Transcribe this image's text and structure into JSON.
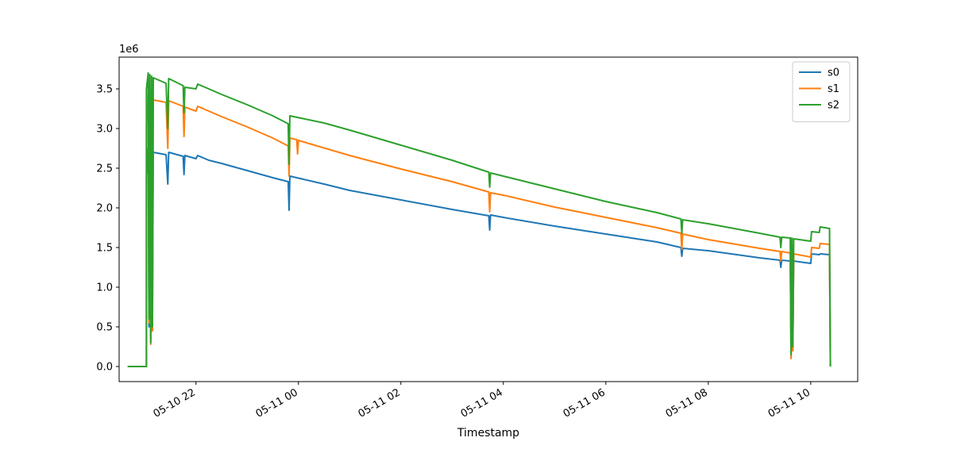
{
  "chart_data": {
    "type": "line",
    "title": "",
    "xlabel": "Timestamp",
    "ylabel": "",
    "y_scale_label": "1e6",
    "grid": false,
    "legend_position": "top-right",
    "xlim": [
      "2024-05-10 20:30",
      "2024-05-11 10:55"
    ],
    "ylim": [
      -0.19,
      3.9
    ],
    "x_ticks": [
      {
        "t": "2024-05-10 22:00",
        "label": "05-10 22"
      },
      {
        "t": "2024-05-11 00:00",
        "label": "05-11 00"
      },
      {
        "t": "2024-05-11 02:00",
        "label": "05-11 02"
      },
      {
        "t": "2024-05-11 04:00",
        "label": "05-11 04"
      },
      {
        "t": "2024-05-11 06:00",
        "label": "05-11 06"
      },
      {
        "t": "2024-05-11 08:00",
        "label": "05-11 08"
      },
      {
        "t": "2024-05-11 10:00",
        "label": "05-11 10"
      }
    ],
    "y_ticks": [
      {
        "v": 0.0,
        "label": "0.0"
      },
      {
        "v": 0.5,
        "label": "0.5"
      },
      {
        "v": 1.0,
        "label": "1.0"
      },
      {
        "v": 1.5,
        "label": "1.5"
      },
      {
        "v": 2.0,
        "label": "2.0"
      },
      {
        "v": 2.5,
        "label": "2.5"
      },
      {
        "v": 3.0,
        "label": "3.0"
      },
      {
        "v": 3.5,
        "label": "3.5"
      }
    ],
    "series": [
      {
        "name": "s0",
        "color": "#1f77b4",
        "points": [
          [
            "2024-05-10 20:40",
            0.0
          ],
          [
            "2024-05-10 21:02",
            0.0
          ],
          [
            "2024-05-10 21:02",
            2.4
          ],
          [
            "2024-05-10 21:04",
            2.75
          ],
          [
            "2024-05-10 21:05",
            0.5
          ],
          [
            "2024-05-10 21:06",
            2.74
          ],
          [
            "2024-05-10 21:07",
            0.35
          ],
          [
            "2024-05-10 21:08",
            2.72
          ],
          [
            "2024-05-10 21:09",
            0.45
          ],
          [
            "2024-05-10 21:10",
            2.7
          ],
          [
            "2024-05-10 21:25",
            2.67
          ],
          [
            "2024-05-10 21:27",
            2.3
          ],
          [
            "2024-05-10 21:28",
            2.7
          ],
          [
            "2024-05-10 21:45",
            2.65
          ],
          [
            "2024-05-10 21:46",
            2.42
          ],
          [
            "2024-05-10 21:47",
            2.66
          ],
          [
            "2024-05-10 22:00",
            2.62
          ],
          [
            "2024-05-10 22:02",
            2.66
          ],
          [
            "2024-05-10 22:15",
            2.6
          ],
          [
            "2024-05-10 22:30",
            2.56
          ],
          [
            "2024-05-10 23:00",
            2.47
          ],
          [
            "2024-05-10 23:30",
            2.38
          ],
          [
            "2024-05-10 23:48",
            2.33
          ],
          [
            "2024-05-10 23:49",
            1.97
          ],
          [
            "2024-05-10 23:50",
            2.4
          ],
          [
            "2024-05-11 00:30",
            2.3
          ],
          [
            "2024-05-11 01:00",
            2.22
          ],
          [
            "2024-05-11 02:00",
            2.1
          ],
          [
            "2024-05-11 03:00",
            1.98
          ],
          [
            "2024-05-11 03:43",
            1.9
          ],
          [
            "2024-05-11 03:44",
            1.72
          ],
          [
            "2024-05-11 03:45",
            1.91
          ],
          [
            "2024-05-11 04:00",
            1.88
          ],
          [
            "2024-05-11 05:00",
            1.77
          ],
          [
            "2024-05-11 06:00",
            1.67
          ],
          [
            "2024-05-11 07:00",
            1.57
          ],
          [
            "2024-05-11 07:28",
            1.5
          ],
          [
            "2024-05-11 07:29",
            1.39
          ],
          [
            "2024-05-11 07:30",
            1.49
          ],
          [
            "2024-05-11 08:00",
            1.46
          ],
          [
            "2024-05-11 09:00",
            1.37
          ],
          [
            "2024-05-11 09:24",
            1.34
          ],
          [
            "2024-05-11 09:25",
            1.25
          ],
          [
            "2024-05-11 09:26",
            1.34
          ],
          [
            "2024-05-11 09:36",
            1.33
          ],
          [
            "2024-05-11 09:37",
            0.12
          ],
          [
            "2024-05-11 09:38",
            1.33
          ],
          [
            "2024-05-11 09:39",
            0.2
          ],
          [
            "2024-05-11 09:40",
            1.33
          ],
          [
            "2024-05-11 10:00",
            1.3
          ],
          [
            "2024-05-11 10:01",
            1.42
          ],
          [
            "2024-05-11 10:10",
            1.41
          ],
          [
            "2024-05-11 10:11",
            1.42
          ],
          [
            "2024-05-11 10:22",
            1.41
          ],
          [
            "2024-05-11 10:23",
            0.0
          ]
        ]
      },
      {
        "name": "s1",
        "color": "#ff7f0e",
        "points": [
          [
            "2024-05-10 20:40",
            0.0
          ],
          [
            "2024-05-10 21:02",
            0.0
          ],
          [
            "2024-05-10 21:02",
            3.05
          ],
          [
            "2024-05-10 21:04",
            3.42
          ],
          [
            "2024-05-10 21:05",
            0.55
          ],
          [
            "2024-05-10 21:06",
            3.4
          ],
          [
            "2024-05-10 21:07",
            0.28
          ],
          [
            "2024-05-10 21:08",
            3.38
          ],
          [
            "2024-05-10 21:09",
            0.45
          ],
          [
            "2024-05-10 21:10",
            3.36
          ],
          [
            "2024-05-10 21:25",
            3.33
          ],
          [
            "2024-05-10 21:27",
            2.75
          ],
          [
            "2024-05-10 21:28",
            3.35
          ],
          [
            "2024-05-10 21:45",
            3.28
          ],
          [
            "2024-05-10 21:46",
            2.9
          ],
          [
            "2024-05-10 21:47",
            3.27
          ],
          [
            "2024-05-10 22:00",
            3.22
          ],
          [
            "2024-05-10 22:02",
            3.28
          ],
          [
            "2024-05-10 22:30",
            3.15
          ],
          [
            "2024-05-10 23:00",
            3.02
          ],
          [
            "2024-05-10 23:30",
            2.88
          ],
          [
            "2024-05-10 23:48",
            2.78
          ],
          [
            "2024-05-10 23:49",
            2.4
          ],
          [
            "2024-05-10 23:50",
            2.88
          ],
          [
            "2024-05-10 23:58",
            2.86
          ],
          [
            "2024-05-10 23:59",
            2.68
          ],
          [
            "2024-05-11 00:00",
            2.85
          ],
          [
            "2024-05-11 01:00",
            2.66
          ],
          [
            "2024-05-11 02:00",
            2.49
          ],
          [
            "2024-05-11 03:00",
            2.33
          ],
          [
            "2024-05-11 03:43",
            2.2
          ],
          [
            "2024-05-11 03:44",
            1.95
          ],
          [
            "2024-05-11 03:45",
            2.19
          ],
          [
            "2024-05-11 04:00",
            2.16
          ],
          [
            "2024-05-11 05:00",
            2.01
          ],
          [
            "2024-05-11 06:00",
            1.88
          ],
          [
            "2024-05-11 07:00",
            1.75
          ],
          [
            "2024-05-11 07:28",
            1.68
          ],
          [
            "2024-05-11 07:29",
            1.48
          ],
          [
            "2024-05-11 07:30",
            1.67
          ],
          [
            "2024-05-11 08:00",
            1.6
          ],
          [
            "2024-05-11 09:00",
            1.49
          ],
          [
            "2024-05-11 09:24",
            1.45
          ],
          [
            "2024-05-11 09:25",
            1.33
          ],
          [
            "2024-05-11 09:26",
            1.45
          ],
          [
            "2024-05-11 09:36",
            1.43
          ],
          [
            "2024-05-11 09:37",
            0.1
          ],
          [
            "2024-05-11 09:38",
            1.43
          ],
          [
            "2024-05-11 09:39",
            0.2
          ],
          [
            "2024-05-11 09:40",
            1.42
          ],
          [
            "2024-05-11 10:00",
            1.38
          ],
          [
            "2024-05-11 10:01",
            1.5
          ],
          [
            "2024-05-11 10:10",
            1.49
          ],
          [
            "2024-05-11 10:11",
            1.55
          ],
          [
            "2024-05-11 10:22",
            1.54
          ],
          [
            "2024-05-11 10:23",
            0.0
          ]
        ]
      },
      {
        "name": "s2",
        "color": "#2ca02c",
        "points": [
          [
            "2024-05-10 20:40",
            0.0
          ],
          [
            "2024-05-10 21:02",
            0.0
          ],
          [
            "2024-05-10 21:02",
            3.5
          ],
          [
            "2024-05-10 21:04",
            3.7
          ],
          [
            "2024-05-10 21:05",
            0.6
          ],
          [
            "2024-05-10 21:06",
            3.68
          ],
          [
            "2024-05-10 21:07",
            0.3
          ],
          [
            "2024-05-10 21:08",
            3.66
          ],
          [
            "2024-05-10 21:09",
            0.5
          ],
          [
            "2024-05-10 21:10",
            3.64
          ],
          [
            "2024-05-10 21:25",
            3.57
          ],
          [
            "2024-05-10 21:27",
            3.0
          ],
          [
            "2024-05-10 21:28",
            3.63
          ],
          [
            "2024-05-10 21:45",
            3.54
          ],
          [
            "2024-05-10 21:46",
            3.2
          ],
          [
            "2024-05-10 21:47",
            3.52
          ],
          [
            "2024-05-10 22:00",
            3.5
          ],
          [
            "2024-05-10 22:02",
            3.56
          ],
          [
            "2024-05-10 22:30",
            3.43
          ],
          [
            "2024-05-10 23:00",
            3.3
          ],
          [
            "2024-05-10 23:30",
            3.16
          ],
          [
            "2024-05-10 23:48",
            3.06
          ],
          [
            "2024-05-10 23:49",
            2.55
          ],
          [
            "2024-05-10 23:50",
            3.16
          ],
          [
            "2024-05-11 00:30",
            3.07
          ],
          [
            "2024-05-11 01:00",
            2.98
          ],
          [
            "2024-05-11 02:00",
            2.79
          ],
          [
            "2024-05-11 03:00",
            2.6
          ],
          [
            "2024-05-11 03:43",
            2.45
          ],
          [
            "2024-05-11 03:44",
            2.26
          ],
          [
            "2024-05-11 03:45",
            2.44
          ],
          [
            "2024-05-11 04:00",
            2.4
          ],
          [
            "2024-05-11 05:00",
            2.24
          ],
          [
            "2024-05-11 06:00",
            2.08
          ],
          [
            "2024-05-11 07:00",
            1.94
          ],
          [
            "2024-05-11 07:28",
            1.86
          ],
          [
            "2024-05-11 07:29",
            1.68
          ],
          [
            "2024-05-11 07:30",
            1.85
          ],
          [
            "2024-05-11 08:00",
            1.8
          ],
          [
            "2024-05-11 09:00",
            1.68
          ],
          [
            "2024-05-11 09:24",
            1.63
          ],
          [
            "2024-05-11 09:25",
            1.5
          ],
          [
            "2024-05-11 09:26",
            1.63
          ],
          [
            "2024-05-11 09:36",
            1.62
          ],
          [
            "2024-05-11 09:37",
            0.15
          ],
          [
            "2024-05-11 09:38",
            1.62
          ],
          [
            "2024-05-11 09:39",
            0.25
          ],
          [
            "2024-05-11 09:40",
            1.61
          ],
          [
            "2024-05-11 10:00",
            1.58
          ],
          [
            "2024-05-11 10:01",
            1.7
          ],
          [
            "2024-05-11 10:10",
            1.69
          ],
          [
            "2024-05-11 10:11",
            1.76
          ],
          [
            "2024-05-11 10:22",
            1.74
          ],
          [
            "2024-05-11 10:23",
            0.0
          ]
        ]
      }
    ]
  }
}
